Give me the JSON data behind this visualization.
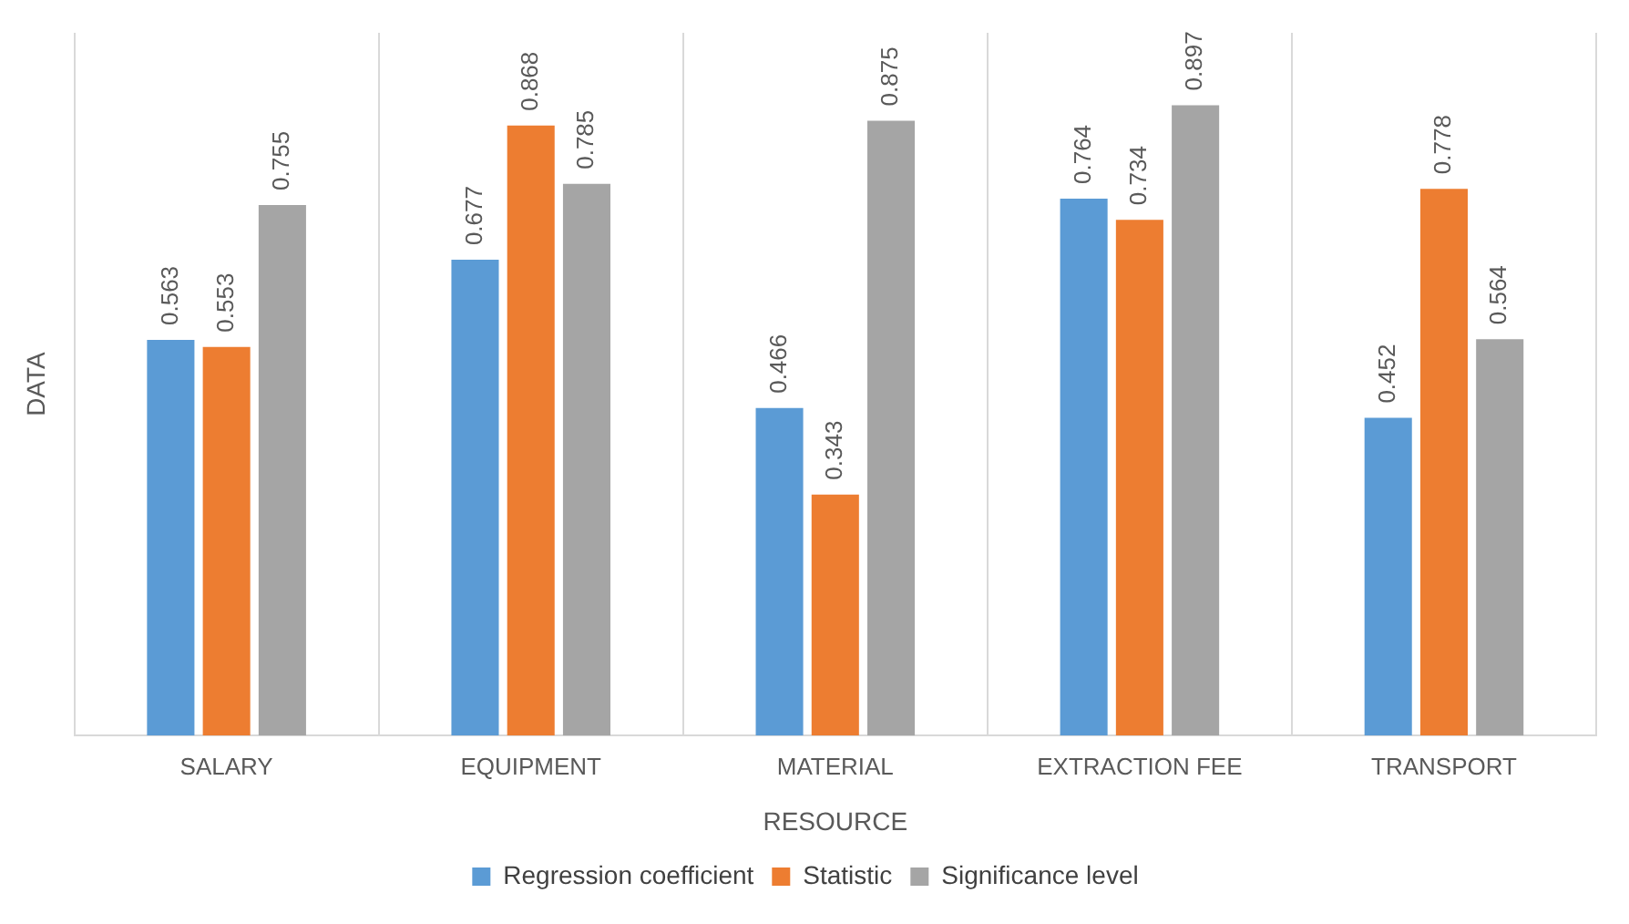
{
  "chart_data": {
    "type": "bar",
    "xlabel": "RESOURCE",
    "ylabel": "DATA",
    "categories": [
      "SALARY",
      "EQUIPMENT",
      "MATERIAL",
      "EXTRACTION FEE",
      "TRANSPORT"
    ],
    "series": [
      {
        "name": "Regression coefficient",
        "color": "#5b9bd5",
        "values": [
          0.563,
          0.677,
          0.466,
          0.764,
          0.452
        ]
      },
      {
        "name": "Statistic",
        "color": "#ed7d31",
        "values": [
          0.553,
          0.868,
          0.343,
          0.734,
          0.778
        ]
      },
      {
        "name": "Significance level",
        "color": "#a5a5a5",
        "values": [
          0.755,
          0.785,
          0.875,
          0.897,
          0.564
        ]
      }
    ],
    "data_labels": true,
    "grid": "x",
    "legend": "bottom"
  }
}
